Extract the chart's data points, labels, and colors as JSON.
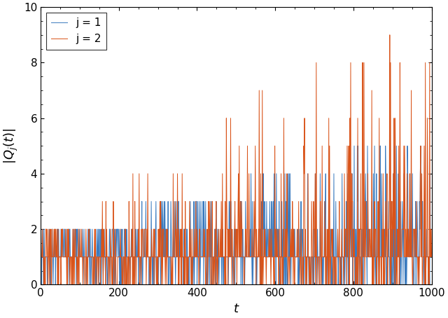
{
  "title": "",
  "xlabel": "t",
  "ylabel": "|Q_j(t)|",
  "xlim": [
    0,
    1000
  ],
  "ylim": [
    0,
    10
  ],
  "yticks": [
    0,
    2,
    4,
    6,
    8,
    10
  ],
  "xticks": [
    0,
    200,
    400,
    600,
    800,
    1000
  ],
  "color_j1": "#3B7BBF",
  "color_j2": "#D95319",
  "legend_j1": "j = 1",
  "legend_j2": "j = 2",
  "seed": 42,
  "n_steps": 1001,
  "figsize": [
    6.4,
    4.54
  ],
  "dpi": 100
}
